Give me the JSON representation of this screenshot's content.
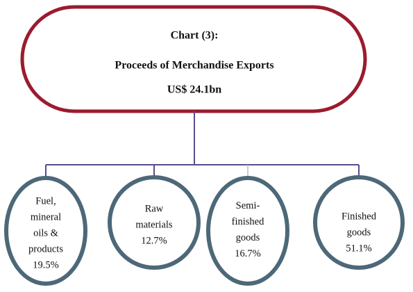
{
  "header": {
    "lines": [
      "Chart (3):",
      "Proceeds of Merchandise Exports",
      "US$ 24.1bn"
    ]
  },
  "nodes": [
    {
      "lines": [
        "Fuel,",
        "mineral",
        "oils &",
        "products"
      ],
      "value": "19.5%"
    },
    {
      "lines": [
        "Raw",
        "materials"
      ],
      "value": "12.7%"
    },
    {
      "lines": [
        "Semi-",
        "finished",
        "goods"
      ],
      "value": "16.7%"
    },
    {
      "lines": [
        "Finished",
        "goods"
      ],
      "value": "51.1%"
    }
  ]
}
